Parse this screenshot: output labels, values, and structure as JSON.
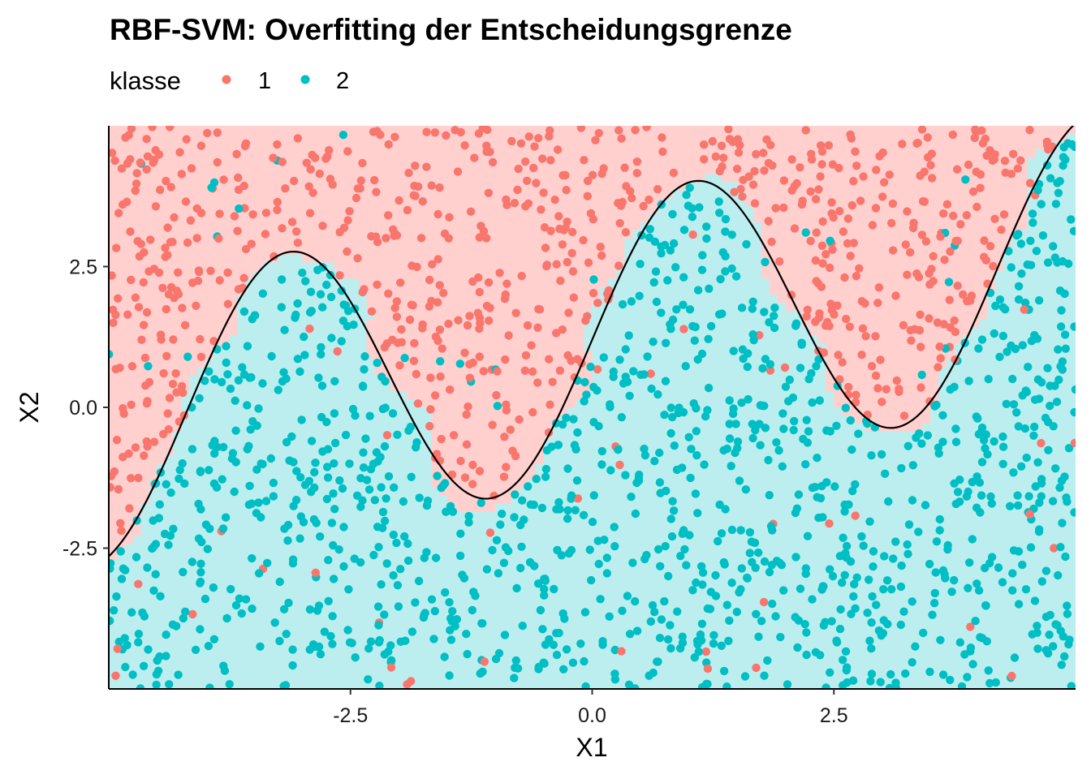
{
  "chart_data": {
    "type": "scatter",
    "title": "RBF-SVM: Overfitting der Entscheidungsgrenze",
    "xlabel": "X1",
    "ylabel": "X2",
    "xlim": [
      -5,
      5
    ],
    "ylim": [
      -5,
      5
    ],
    "x_ticks": [
      -2.5,
      0.0,
      2.5
    ],
    "y_ticks": [
      -2.5,
      0.0,
      2.5
    ],
    "x_tick_labels": [
      "-2.5",
      "0.0",
      "2.5"
    ],
    "y_tick_labels": [
      "-2.5",
      "0.0",
      "2.5"
    ],
    "grid": false,
    "legend": {
      "title": "klasse",
      "position": "top-left",
      "entries": [
        {
          "label": "1",
          "color": "#F8766D"
        },
        {
          "label": "2",
          "color": "#00BFC4"
        }
      ]
    },
    "background_regions": {
      "description_colors": {
        "1": "#FFD0CE",
        "2": "#BDEEEF"
      }
    },
    "true_boundary": {
      "color": "#000000",
      "function": "x2 = 2.5*sin(1.5*x1) + 0.3*x1 + 1.2 (approx.)"
    },
    "series": [
      {
        "name": "1",
        "color": "#F8766D",
        "n_points_approx": 1000
      },
      {
        "name": "2",
        "color": "#00BFC4",
        "n_points_approx": 1000
      }
    ]
  }
}
